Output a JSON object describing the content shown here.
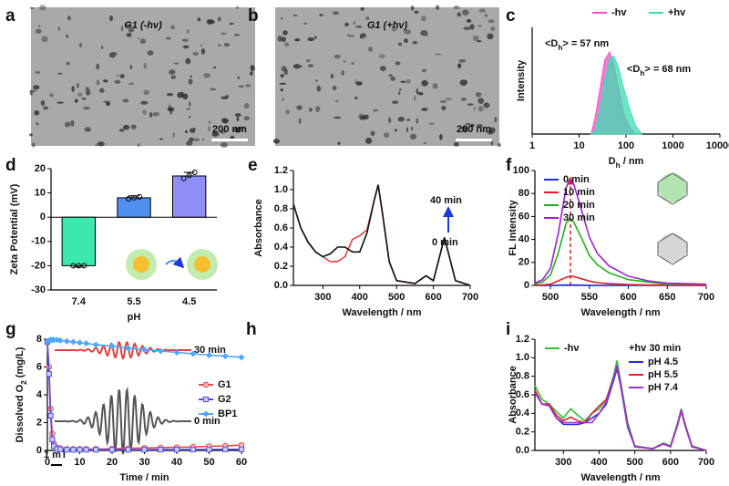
{
  "panel_labels": [
    "a",
    "b",
    "c",
    "d",
    "e",
    "f",
    "g",
    "h",
    "i"
  ],
  "images": [
    {
      "label": "G1 (-hv)",
      "scale_bar": "200 nm"
    },
    {
      "label": "G1 (+hv)",
      "scale_bar": "200 nm"
    }
  ],
  "epr": {
    "labels": [
      "30 min",
      "0 min"
    ],
    "scale_bar": "1 mT"
  },
  "chart_data": [
    {
      "type": "area",
      "ylabel": "Intensity",
      "xlabel": {
        "text": "D",
        "sub": "h",
        "tail": " / nm"
      },
      "xscale": "log",
      "xlim": [
        1,
        10000
      ],
      "xticks": [
        1,
        10,
        100,
        1000,
        10000
      ],
      "ylim": [
        0,
        1.3
      ],
      "x": [
        18,
        22,
        28,
        35,
        45,
        55,
        70,
        90,
        120,
        160,
        220
      ],
      "series": [
        {
          "name": "-hv",
          "color": "#f050c8",
          "values": [
            0,
            0.2,
            0.55,
            0.9,
            1.0,
            0.85,
            0.55,
            0.25,
            0.08,
            0,
            0
          ]
        },
        {
          "name": "+hv",
          "color": "#3ddcb0",
          "values": [
            0,
            0.05,
            0.3,
            0.65,
            0.92,
            0.95,
            0.8,
            0.55,
            0.3,
            0.1,
            0
          ]
        }
      ],
      "annotations": [
        {
          "text": "<D",
          "sub": "h",
          "tail": "> = 57 nm",
          "color": "#f050c8"
        },
        {
          "text": "<D",
          "sub": "h",
          "tail": "> = 68 nm",
          "color": "#20c8a0"
        }
      ]
    },
    {
      "type": "bar",
      "ylabel": "Zeta Potential (mV)",
      "xlabel": "pH",
      "categories": [
        "7.4",
        "5.5",
        "4.5"
      ],
      "values": [
        -20,
        8,
        17
      ],
      "errors": [
        0.6,
        0.8,
        1.5
      ],
      "points": [
        [
          -20,
          -20,
          -20
        ],
        [
          7.6,
          8,
          8.4
        ],
        [
          16,
          17.3,
          18.5
        ]
      ],
      "colors": [
        "#3de8b0",
        "#4f8ff0",
        "#8f8ff5"
      ],
      "ylim": [
        -30,
        20
      ],
      "yticks": [
        -30,
        -20,
        -10,
        0,
        10,
        20
      ]
    },
    {
      "type": "line",
      "ylabel": "Absorbance",
      "xlabel": "Wavelength / nm",
      "xlim": [
        220,
        700
      ],
      "xticks": [
        300,
        400,
        500,
        600,
        700
      ],
      "ylim": [
        0,
        1.2
      ],
      "yticks": [
        {
          "value": 0,
          "label": "0.0"
        },
        {
          "value": 0.2,
          "label": "0.2"
        },
        {
          "value": 0.4,
          "label": "0.4"
        },
        {
          "value": 0.6,
          "label": "0.6"
        },
        {
          "value": 0.8,
          "label": "0.8"
        },
        {
          "value": 1,
          "label": "1.0"
        },
        {
          "value": 1.2,
          "label": "1.2"
        }
      ],
      "x": [
        220,
        240,
        260,
        280,
        300,
        320,
        340,
        360,
        380,
        400,
        420,
        440,
        450,
        460,
        480,
        500,
        550,
        580,
        600,
        620,
        630,
        640,
        660,
        700
      ],
      "series": [
        {
          "color": "#e84040",
          "values": [
            0.85,
            0.6,
            0.45,
            0.35,
            0.3,
            0.25,
            0.25,
            0.3,
            0.48,
            0.52,
            0.58,
            0.9,
            1.05,
            0.8,
            0.25,
            0.05,
            0.02,
            0.1,
            0.05,
            0.35,
            0.5,
            0.35,
            0.05,
            0
          ]
        },
        {
          "color": "#111111",
          "values": [
            0.85,
            0.6,
            0.45,
            0.35,
            0.3,
            0.33,
            0.4,
            0.4,
            0.35,
            0.35,
            0.55,
            0.9,
            1.05,
            0.8,
            0.25,
            0.05,
            0.02,
            0.1,
            0.05,
            0.35,
            0.5,
            0.35,
            0.05,
            0
          ]
        }
      ],
      "annotations": [
        "40 min",
        "0 min"
      ]
    },
    {
      "type": "line",
      "ylabel": "FL Intensity",
      "xlabel": "Wavelength / nm",
      "xlim": [
        480,
        700
      ],
      "xticks": [
        500,
        550,
        600,
        650,
        700
      ],
      "ylim": [
        0,
        100
      ],
      "yticks": [
        0,
        20,
        40,
        60,
        80,
        100
      ],
      "x": [
        480,
        490,
        500,
        510,
        520,
        525,
        530,
        540,
        550,
        560,
        575,
        600,
        625,
        650,
        700
      ],
      "series": [
        {
          "name": "0 min",
          "color": "#2030e0",
          "values": [
            0,
            0,
            0,
            0.2,
            0.3,
            0.3,
            0.3,
            0.2,
            0.1,
            0,
            0,
            0,
            0,
            0,
            0
          ]
        },
        {
          "name": "10 min",
          "color": "#e02020",
          "values": [
            0,
            0.5,
            1,
            4,
            7,
            8,
            7.7,
            5.7,
            3.7,
            2.4,
            1.5,
            0.7,
            0.3,
            0.2,
            0
          ]
        },
        {
          "name": "20 min",
          "color": "#20b020",
          "values": [
            1,
            3,
            9,
            28,
            54,
            58,
            55,
            41,
            26,
            18,
            11,
            5,
            3,
            1,
            1
          ]
        },
        {
          "name": "30 min",
          "color": "#a020d0",
          "values": [
            2,
            5,
            15,
            45,
            85,
            92,
            88,
            65,
            42,
            28,
            17,
            8,
            4,
            2,
            1
          ]
        }
      ]
    },
    {
      "type": "line",
      "ylabel": {
        "text": "Dissolved O",
        "sub": "2",
        "tail": " (mg/L)"
      },
      "xlabel": "Time / min",
      "xlim": [
        0,
        60
      ],
      "xticks": [
        0,
        10,
        20,
        30,
        40,
        50,
        60
      ],
      "ylim": [
        0,
        8
      ],
      "yticks": [
        0,
        2,
        4,
        6,
        8
      ],
      "x": [
        0,
        0.5,
        1,
        1.5,
        2,
        3,
        4,
        6,
        8,
        10,
        12,
        15,
        20,
        25,
        30,
        35,
        40,
        45,
        50,
        55,
        60
      ],
      "series": [
        {
          "name": "G1",
          "color": "#e84848",
          "marker": "circle",
          "values": [
            7.8,
            6,
            3,
            1.2,
            0.5,
            0.2,
            0.15,
            0.1,
            0.1,
            0.1,
            0.1,
            0.1,
            0.12,
            0.15,
            0.18,
            0.2,
            0.22,
            0.25,
            0.3,
            0.33,
            0.38
          ]
        },
        {
          "name": "G2",
          "color": "#5050e0",
          "marker": "square",
          "values": [
            7.8,
            5.5,
            2.5,
            0.8,
            0.3,
            0.1,
            0.08,
            0.05,
            0.05,
            0.05,
            0.05,
            0.05,
            0.05,
            0.05,
            0.05,
            0.06,
            0.06,
            0.07,
            0.07,
            0.08,
            0.08
          ]
        },
        {
          "name": "BP1",
          "color": "#4da6ff",
          "marker": "diamond",
          "values": [
            7.8,
            7.9,
            7.95,
            7.95,
            7.95,
            7.95,
            7.9,
            7.85,
            7.8,
            7.75,
            7.7,
            7.6,
            7.5,
            7.35,
            7.25,
            7.15,
            7.05,
            6.95,
            6.85,
            6.78,
            6.7
          ]
        }
      ]
    },
    {
      "type": "line",
      "ylabel": "Absorbance",
      "xlabel": "Wavelength / nm",
      "legend_title": "+hv 30 min",
      "xlim": [
        220,
        700
      ],
      "xticks": [
        300,
        400,
        500,
        600,
        700
      ],
      "ylim": [
        0,
        1.2
      ],
      "yticks": [
        {
          "value": 0,
          "label": "0.0"
        },
        {
          "value": 0.2,
          "label": "0.2"
        },
        {
          "value": 0.4,
          "label": "0.4"
        },
        {
          "value": 0.6,
          "label": "0.6"
        },
        {
          "value": 0.8,
          "label": "0.8"
        },
        {
          "value": 1,
          "label": "1.0"
        },
        {
          "value": 1.2,
          "label": "1.2"
        }
      ],
      "x": [
        220,
        240,
        260,
        280,
        300,
        320,
        340,
        360,
        380,
        400,
        420,
        440,
        450,
        460,
        480,
        500,
        550,
        580,
        600,
        620,
        630,
        640,
        660,
        700
      ],
      "series": [
        {
          "name": "-hv",
          "color": "#30c030",
          "values": [
            0.7,
            0.55,
            0.5,
            0.42,
            0.35,
            0.45,
            0.38,
            0.32,
            0.4,
            0.45,
            0.55,
            0.8,
            0.97,
            0.75,
            0.3,
            0.05,
            0.02,
            0.08,
            0.05,
            0.3,
            0.45,
            0.3,
            0.05,
            0
          ]
        },
        {
          "name": "pH 4.5",
          "color": "#2030d0",
          "values": [
            0.65,
            0.5,
            0.5,
            0.35,
            0.28,
            0.28,
            0.28,
            0.3,
            0.35,
            0.4,
            0.5,
            0.75,
            0.88,
            0.7,
            0.25,
            0.04,
            0.02,
            0.07,
            0.04,
            0.28,
            0.42,
            0.28,
            0.04,
            0
          ]
        },
        {
          "name": "pH 5.5",
          "color": "#e02030",
          "values": [
            0.65,
            0.5,
            0.5,
            0.38,
            0.32,
            0.36,
            0.32,
            0.3,
            0.4,
            0.48,
            0.55,
            0.78,
            0.9,
            0.72,
            0.27,
            0.04,
            0.02,
            0.07,
            0.04,
            0.28,
            0.43,
            0.28,
            0.04,
            0
          ]
        },
        {
          "name": "pH 7.4",
          "color": "#a030d0",
          "values": [
            0.62,
            0.5,
            0.48,
            0.35,
            0.3,
            0.3,
            0.3,
            0.3,
            0.3,
            0.4,
            0.52,
            0.78,
            0.92,
            0.72,
            0.27,
            0.04,
            0.02,
            0.07,
            0.04,
            0.28,
            0.44,
            0.28,
            0.04,
            0
          ]
        }
      ]
    }
  ]
}
